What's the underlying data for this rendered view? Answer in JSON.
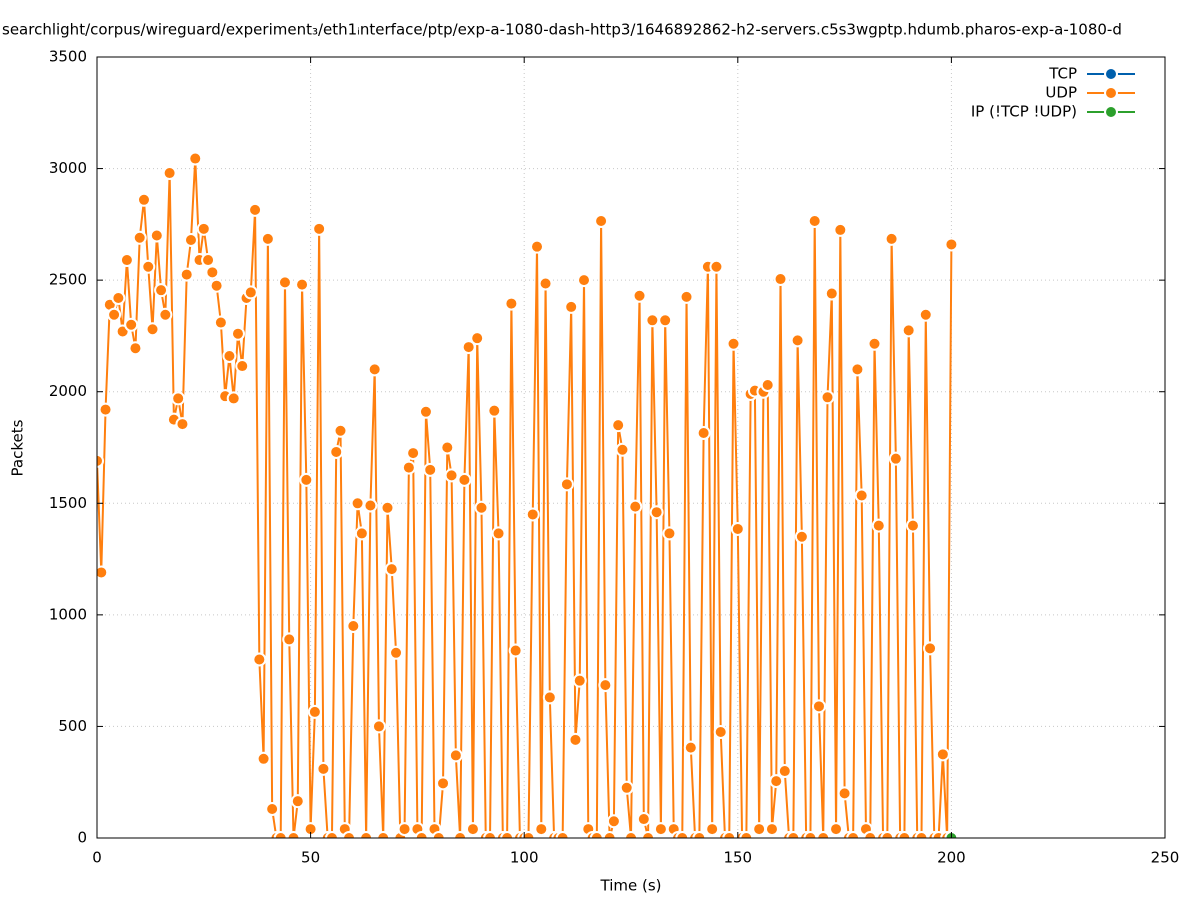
{
  "chart_data": {
    "type": "line",
    "title": "searchlight/corpus/wireguard/experiment₃/eth1ᵢnterface/ptp/exp-a-1080-dash-http3/1646892862-h2-servers.c5s3wgptp.hdumb.pharos-exp-a-1080-d",
    "x_label": "Time (s)",
    "y_label": "Packets",
    "xlim": [
      0,
      250
    ],
    "xticks": [
      0,
      50,
      100,
      150,
      200,
      250
    ],
    "ylim": [
      0,
      3500
    ],
    "yticks": [
      0,
      500,
      1000,
      1500,
      2000,
      2500,
      3000,
      3500
    ],
    "grid": true,
    "legend": "top-right",
    "series": [
      {
        "name": "TCP",
        "color": "#0060ad",
        "x": [],
        "values": []
      },
      {
        "name": "UDP",
        "color": "#ff7f0e",
        "x": [
          0,
          1,
          2,
          3,
          4,
          5,
          6,
          7,
          8,
          9,
          10,
          11,
          12,
          13,
          14,
          15,
          16,
          17,
          18,
          19,
          20,
          21,
          22,
          23,
          24,
          25,
          26,
          27,
          28,
          29,
          30,
          31,
          32,
          33,
          34,
          35,
          36,
          37,
          38,
          39,
          40,
          41,
          42,
          43,
          44,
          45,
          46,
          47,
          48,
          49,
          50,
          51,
          52,
          53,
          54,
          55,
          56,
          57,
          58,
          59,
          60,
          61,
          62,
          63,
          64,
          65,
          66,
          67,
          68,
          69,
          70,
          71,
          72,
          73,
          74,
          75,
          76,
          77,
          78,
          79,
          80,
          81,
          82,
          83,
          84,
          85,
          86,
          87,
          88,
          89,
          90,
          91,
          92,
          93,
          94,
          95,
          96,
          97,
          98,
          99,
          100,
          101,
          102,
          103,
          104,
          105,
          106,
          107,
          108,
          109,
          110,
          111,
          112,
          113,
          114,
          115,
          116,
          117,
          118,
          119,
          120,
          121,
          122,
          123,
          124,
          125,
          126,
          127,
          128,
          129,
          130,
          131,
          132,
          133,
          134,
          135,
          136,
          137,
          138,
          139,
          140,
          141,
          142,
          143,
          144,
          145,
          146,
          147,
          148,
          149,
          150,
          151,
          152,
          153,
          154,
          155,
          156,
          157,
          158,
          159,
          160,
          161,
          162,
          163,
          164,
          165,
          166,
          167,
          168,
          169,
          170,
          171,
          172,
          173,
          174,
          175,
          176,
          177,
          178,
          179,
          180,
          181,
          182,
          183,
          184,
          185,
          186,
          187,
          188,
          189,
          190,
          191,
          192,
          193,
          194,
          195,
          196,
          197,
          198,
          199,
          200
        ],
        "values": [
          1690,
          1190,
          1920,
          2390,
          2345,
          2420,
          2270,
          2590,
          2300,
          2195,
          2690,
          2860,
          2560,
          2280,
          2700,
          2455,
          2345,
          2980,
          1875,
          1970,
          1855,
          2525,
          2680,
          3045,
          2590,
          2730,
          2590,
          2535,
          2475,
          2310,
          1980,
          2160,
          1970,
          2260,
          2115,
          2420,
          2445,
          2815,
          800,
          355,
          2685,
          130,
          0,
          0,
          2490,
          890,
          0,
          165,
          2480,
          1605,
          40,
          565,
          2730,
          310,
          0,
          0,
          1730,
          1825,
          40,
          0,
          950,
          1500,
          1365,
          0,
          1490,
          2100,
          500,
          0,
          1480,
          1205,
          830,
          0,
          40,
          1660,
          1725,
          40,
          0,
          1910,
          1650,
          40,
          0,
          245,
          1750,
          1625,
          370,
          0,
          1605,
          2200,
          40,
          2240,
          1480,
          0,
          0,
          1915,
          1365,
          0,
          0,
          2395,
          840,
          0,
          0,
          0,
          1450,
          2650,
          40,
          2485,
          630,
          0,
          0,
          0,
          1585,
          2380,
          440,
          705,
          2500,
          40,
          0,
          0,
          2765,
          685,
          0,
          75,
          1850,
          1740,
          225,
          0,
          1485,
          2430,
          85,
          0,
          2320,
          1460,
          40,
          2320,
          1365,
          40,
          0,
          0,
          2425,
          405,
          0,
          0,
          1815,
          2560,
          40,
          2560,
          475,
          0,
          0,
          2215,
          1385,
          0,
          0,
          1990,
          2005,
          40,
          2000,
          2030,
          40,
          255,
          2505,
          300,
          0,
          0,
          2230,
          1350,
          0,
          0,
          2765,
          590,
          0,
          1975,
          2440,
          40,
          2725,
          200,
          0,
          0,
          2100,
          1535,
          40,
          0,
          2215,
          1400,
          0,
          0,
          2685,
          1700,
          0,
          0,
          2275,
          1400,
          0,
          0,
          2345,
          850,
          0,
          0,
          375,
          0,
          2660
        ]
      },
      {
        "name": "IP (!TCP  !UDP)",
        "color": "#2ca02c",
        "x": [
          200
        ],
        "values": [
          0
        ]
      }
    ]
  }
}
